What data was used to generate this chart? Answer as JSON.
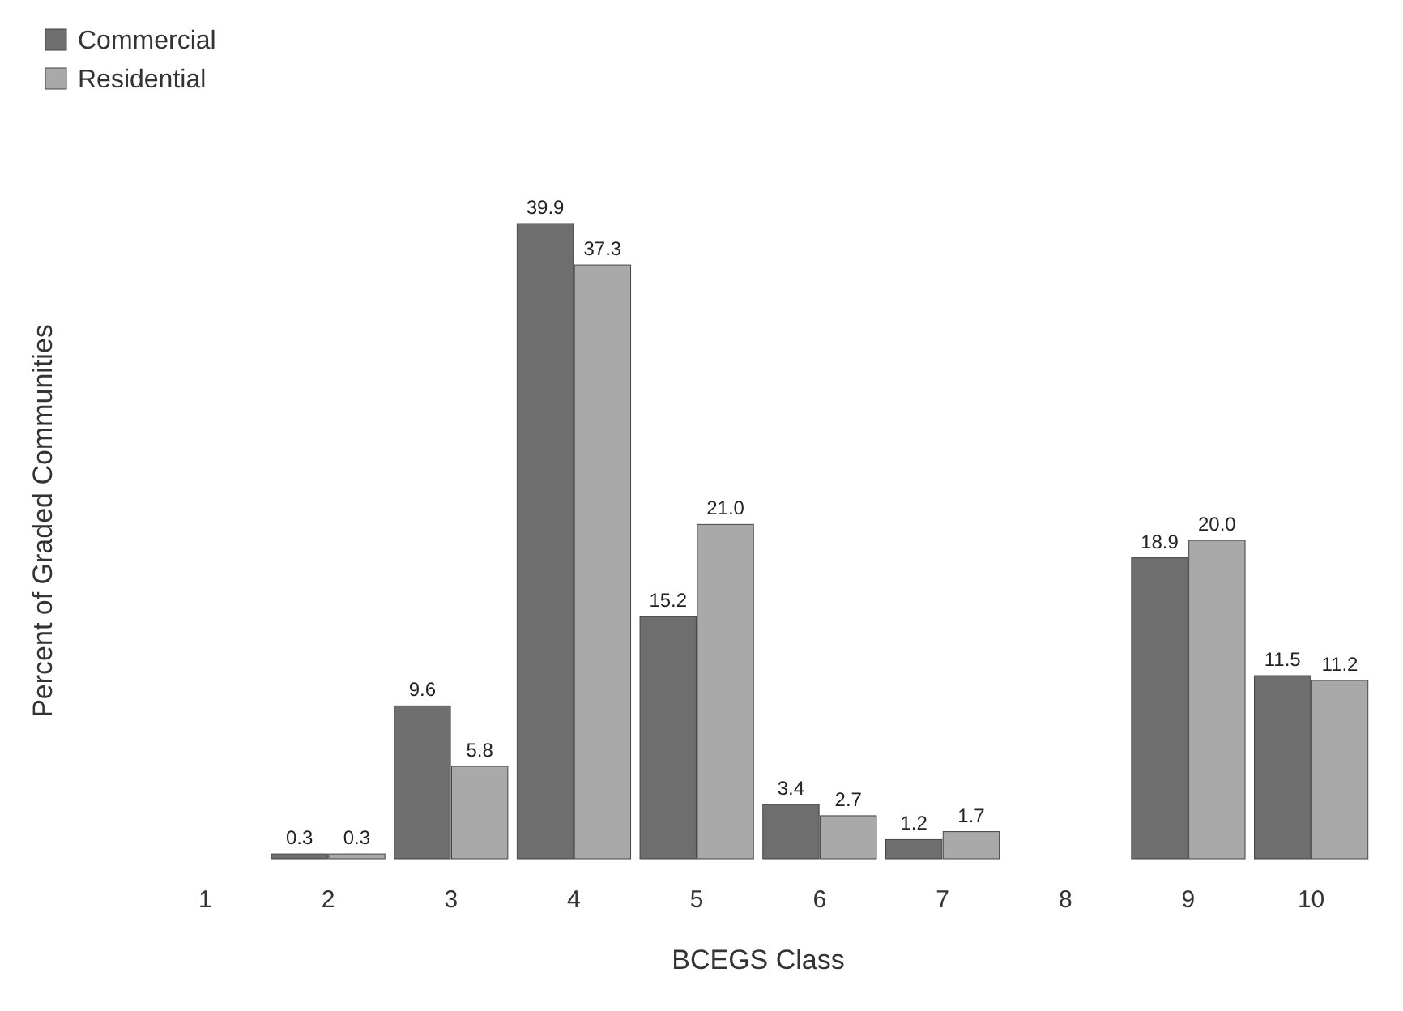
{
  "chart_data": {
    "type": "bar",
    "xlabel": "BCEGS Class",
    "ylabel": "Percent of Graded Communities",
    "categories": [
      "1",
      "2",
      "3",
      "4",
      "5",
      "6",
      "7",
      "8",
      "9",
      "10"
    ],
    "series": [
      {
        "name": "Commercial",
        "color": "#6e6e6e",
        "values": [
          null,
          0.3,
          9.6,
          39.9,
          15.2,
          3.4,
          1.2,
          null,
          18.9,
          11.5
        ],
        "value_labels": [
          null,
          "0.3",
          "9.6",
          "39.9",
          "15.2",
          "3.4",
          "1.2",
          null,
          "18.9",
          "11.5"
        ]
      },
      {
        "name": "Residential",
        "color": "#a9a9a9",
        "values": [
          null,
          0.3,
          5.8,
          37.3,
          21,
          2.7,
          1.7,
          null,
          20,
          11.2
        ],
        "value_labels": [
          null,
          "0.3",
          "5.8",
          "37.3",
          "21.0",
          "2.7",
          "1.7",
          null,
          "20.0",
          "11.2"
        ]
      }
    ],
    "legend": "top left"
  }
}
